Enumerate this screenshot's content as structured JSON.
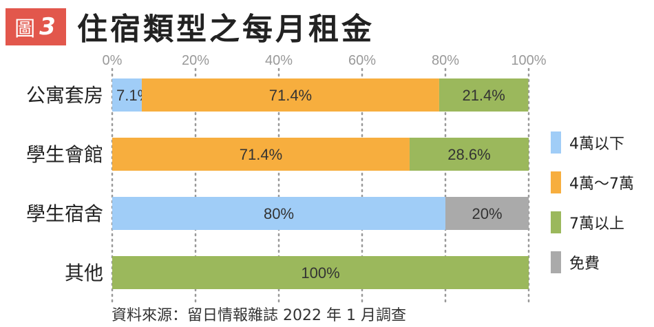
{
  "header": {
    "badge_label": "圖",
    "badge_number": "3",
    "title": "住宿類型之每月租金"
  },
  "source": "資料來源：留日情報雜誌 2022 年 1 月調查",
  "colors": {
    "below_40k": "#a0cdf7",
    "40k_70k": "#f7ae3e",
    "above_70k": "#9bb85c",
    "free": "#aaaaaa",
    "grid": "#999999"
  },
  "legend": [
    {
      "label": "4萬以下",
      "color": "#a0cdf7"
    },
    {
      "label": "4萬～7萬",
      "color": "#f7ae3e"
    },
    {
      "label": "7萬以上",
      "color": "#9bb85c"
    },
    {
      "label": "免費",
      "color": "#aaaaaa"
    }
  ],
  "chart_data": {
    "type": "bar",
    "orientation": "horizontal",
    "stacked": true,
    "title": "住宿類型之每月租金",
    "xlim": [
      0,
      100
    ],
    "x_ticks": [
      "0%",
      "20%",
      "40%",
      "60%",
      "80%",
      "100%"
    ],
    "grid": "vertical dotted",
    "legend_position": "right",
    "categories": [
      "公寓套房",
      "學生會館",
      "學生宿舍",
      "其他"
    ],
    "series": [
      {
        "name": "4萬以下",
        "color": "#a0cdf7",
        "values": [
          7.1,
          0,
          80,
          0
        ],
        "labels": [
          "7.1%",
          "",
          "80%",
          ""
        ]
      },
      {
        "name": "4萬～7萬",
        "color": "#f7ae3e",
        "values": [
          71.4,
          71.4,
          0,
          0
        ],
        "labels": [
          "71.4%",
          "71.4%",
          "",
          ""
        ]
      },
      {
        "name": "7萬以上",
        "color": "#9bb85c",
        "values": [
          21.4,
          28.6,
          0,
          100
        ],
        "labels": [
          "21.4%",
          "28.6%",
          "",
          "100%"
        ]
      },
      {
        "name": "免費",
        "color": "#aaaaaa",
        "values": [
          0,
          0,
          20,
          0
        ],
        "labels": [
          "",
          "",
          "20%",
          ""
        ]
      }
    ]
  }
}
